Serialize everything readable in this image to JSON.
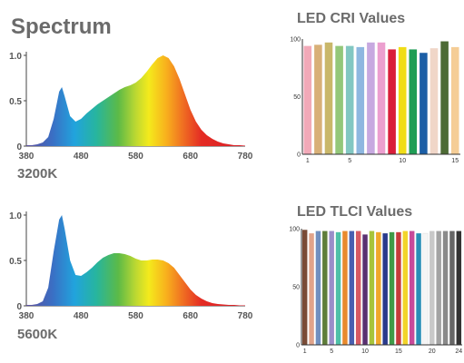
{
  "page_title": "Spectrum",
  "chart_data": [
    {
      "type": "area",
      "label": "3200K",
      "x_ticks": [
        "380",
        "480",
        "580",
        "680",
        "780"
      ],
      "y_ticks": [
        "0",
        "0.5",
        "1.0"
      ],
      "xlim": [
        380,
        780
      ],
      "ylim": [
        0,
        1.0
      ],
      "x": [
        380,
        390,
        400,
        410,
        420,
        430,
        440,
        445,
        450,
        460,
        470,
        480,
        490,
        500,
        510,
        520,
        530,
        540,
        550,
        560,
        570,
        580,
        590,
        600,
        610,
        620,
        630,
        640,
        650,
        660,
        670,
        680,
        690,
        700,
        710,
        720,
        730,
        740,
        750,
        760,
        770,
        780
      ],
      "y": [
        0.01,
        0.01,
        0.02,
        0.04,
        0.1,
        0.3,
        0.6,
        0.65,
        0.55,
        0.33,
        0.27,
        0.3,
        0.36,
        0.41,
        0.46,
        0.5,
        0.54,
        0.58,
        0.62,
        0.65,
        0.67,
        0.7,
        0.75,
        0.82,
        0.9,
        0.97,
        1.0,
        0.97,
        0.88,
        0.74,
        0.57,
        0.4,
        0.27,
        0.18,
        0.12,
        0.08,
        0.05,
        0.03,
        0.02,
        0.01,
        0.01,
        0.005
      ]
    },
    {
      "type": "area",
      "label": "5600K",
      "x_ticks": [
        "380",
        "480",
        "580",
        "680",
        "780"
      ],
      "y_ticks": [
        "0",
        "0.5",
        "1.0"
      ],
      "xlim": [
        380,
        780
      ],
      "ylim": [
        0,
        1.0
      ],
      "x": [
        380,
        390,
        400,
        410,
        420,
        430,
        440,
        445,
        450,
        460,
        470,
        480,
        490,
        500,
        510,
        520,
        530,
        540,
        550,
        560,
        570,
        580,
        590,
        600,
        610,
        620,
        630,
        640,
        650,
        660,
        670,
        680,
        690,
        700,
        710,
        720,
        730,
        740,
        750,
        760,
        770,
        780
      ],
      "y": [
        0.01,
        0.01,
        0.02,
        0.05,
        0.2,
        0.6,
        0.95,
        1.0,
        0.85,
        0.5,
        0.34,
        0.33,
        0.37,
        0.42,
        0.48,
        0.53,
        0.56,
        0.58,
        0.58,
        0.57,
        0.55,
        0.52,
        0.5,
        0.5,
        0.51,
        0.51,
        0.5,
        0.47,
        0.42,
        0.34,
        0.26,
        0.18,
        0.12,
        0.08,
        0.05,
        0.03,
        0.02,
        0.015,
        0.01,
        0.01,
        0.005,
        0.005
      ]
    },
    {
      "type": "bar",
      "title": "LED CRI Values",
      "y_ticks": [
        "100",
        "50",
        "0"
      ],
      "x_ticks": [
        "1",
        "5",
        "10",
        "15"
      ],
      "ylim": [
        0,
        100
      ],
      "categories": [
        "1",
        "2",
        "3",
        "4",
        "5",
        "6",
        "7",
        "8",
        "9",
        "10",
        "11",
        "12",
        "13",
        "14",
        "15"
      ],
      "values": [
        94,
        95,
        97,
        94,
        94,
        93,
        97,
        97,
        91,
        93,
        91,
        88,
        92,
        98,
        93
      ],
      "colors": [
        "#f2a9b8",
        "#d8b078",
        "#c9b76a",
        "#93c77a",
        "#82c7c2",
        "#8eb7e0",
        "#c7a9e0",
        "#ec9fcf",
        "#d91e3a",
        "#f0dd17",
        "#1f9d55",
        "#1b5ea6",
        "#f0d6c8",
        "#4d6b35",
        "#f5cd96"
      ]
    },
    {
      "type": "bar",
      "title": "LED TLCI Values",
      "y_ticks": [
        "100",
        "50",
        "0"
      ],
      "x_ticks": [
        "1",
        "5",
        "10",
        "15",
        "20",
        "24"
      ],
      "ylim": [
        0,
        100
      ],
      "categories": [
        "1",
        "2",
        "3",
        "4",
        "5",
        "6",
        "7",
        "8",
        "9",
        "10",
        "11",
        "12",
        "13",
        "14",
        "15",
        "16",
        "17",
        "18",
        "19",
        "20",
        "21",
        "22",
        "23",
        "24"
      ],
      "values": [
        99,
        96,
        98,
        98,
        98,
        97,
        98,
        98,
        98,
        95,
        98,
        97,
        96,
        97,
        97,
        98,
        98,
        96,
        96,
        98,
        98,
        98,
        98,
        98
      ],
      "colors": [
        "#7a4b36",
        "#e0a38a",
        "#6f8fc0",
        "#5e7d3a",
        "#9a8ec9",
        "#4fc1a8",
        "#e98a2d",
        "#4a5fb0",
        "#d85a63",
        "#5a3070",
        "#a7c43b",
        "#f0a82b",
        "#2a3a8c",
        "#3f9a47",
        "#c63b3b",
        "#f2d42a",
        "#c84a9a",
        "#2a8fb7",
        "#f5f5f5",
        "#c8c8c8",
        "#a3a3a3",
        "#8a8a8a",
        "#666666",
        "#333333"
      ]
    }
  ]
}
